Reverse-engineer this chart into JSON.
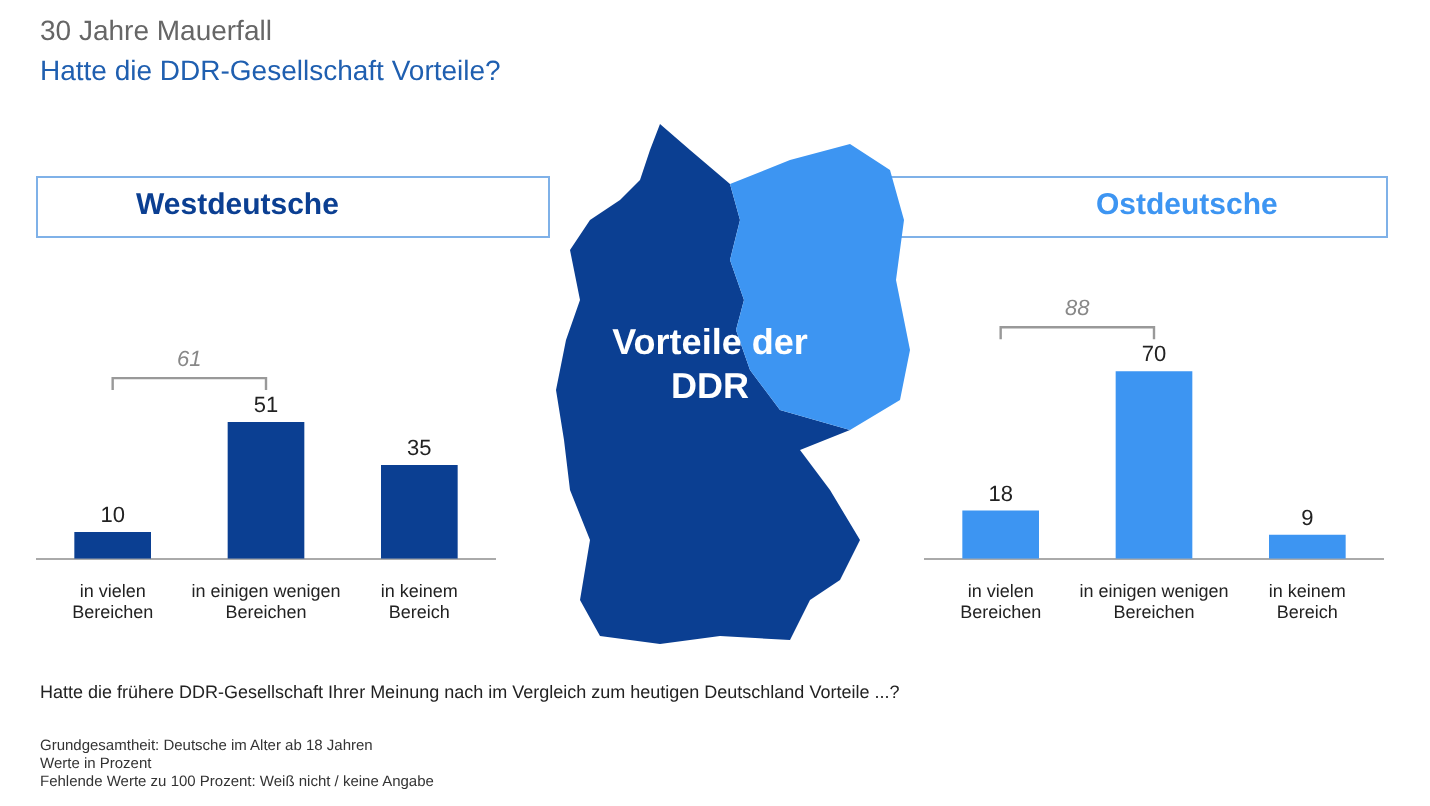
{
  "chart_data": [
    {
      "type": "other",
      "title": "30 Jahre Mauerfall",
      "subtitle": "Hatte die DDR-Gesellschaft Vorteile?",
      "annotations": [
        "Vorteile der DDR",
        "Hatte die frühere DDR-Gesellschaft Ihrer Meinung nach im Vergleich zum heutigen Deutschland Vorteile ...?",
        "Grundgesamtheit: Deutsche im Alter ab 18 Jahren",
        "Werte in Prozent",
        "Fehlende Werte zu 100 Prozent: Weiß nicht / keine Angabe"
      ]
    },
    {
      "type": "bar",
      "title": "Westdeutsche",
      "categories": [
        "in vielen Bereichen",
        "in einigen wenigen Bereichen",
        "in keinem Bereich"
      ],
      "values": [
        10,
        51,
        35
      ],
      "color": "#0b3f92",
      "data_labels": true,
      "annotations": [
        "61"
      ],
      "legend": false
    },
    {
      "type": "bar",
      "title": "Ostdeutsche",
      "categories": [
        "in vielen Bereichen",
        "in einigen wenigen Bereichen",
        "in keinem Bereich"
      ],
      "values": [
        18,
        70,
        9
      ],
      "color": "#3d95f2",
      "data_labels": true,
      "annotations": [
        "88"
      ],
      "legend": false
    }
  ]
}
